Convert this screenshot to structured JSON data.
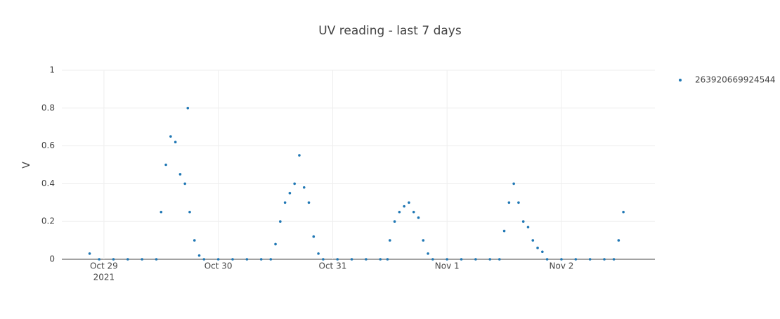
{
  "chart_data": {
    "type": "scatter",
    "title": "UV reading - last 7 days",
    "y_label": "V",
    "x": [
      "2021-10-28 21:00",
      "2021-10-28 23:00",
      "2021-10-29 02:00",
      "2021-10-29 05:00",
      "2021-10-29 08:00",
      "2021-10-29 11:00",
      "2021-10-29 12:00",
      "2021-10-29 13:00",
      "2021-10-29 14:00",
      "2021-10-29 15:00",
      "2021-10-29 16:00",
      "2021-10-29 17:00",
      "2021-10-29 17:36",
      "2021-10-29 18:00",
      "2021-10-29 19:00",
      "2021-10-29 20:00",
      "2021-10-29 21:00",
      "2021-10-30 00:00",
      "2021-10-30 03:00",
      "2021-10-30 06:00",
      "2021-10-30 09:00",
      "2021-10-30 11:00",
      "2021-10-30 12:00",
      "2021-10-30 13:00",
      "2021-10-30 14:00",
      "2021-10-30 15:00",
      "2021-10-30 16:00",
      "2021-10-30 17:00",
      "2021-10-30 18:00",
      "2021-10-30 19:00",
      "2021-10-30 20:00",
      "2021-10-30 21:00",
      "2021-10-30 22:00",
      "2021-10-31 01:00",
      "2021-10-31 04:00",
      "2021-10-31 07:00",
      "2021-10-31 10:00",
      "2021-10-31 11:30",
      "2021-10-31 12:00",
      "2021-10-31 13:00",
      "2021-10-31 14:00",
      "2021-10-31 15:00",
      "2021-10-31 16:00",
      "2021-10-31 17:00",
      "2021-10-31 18:00",
      "2021-10-31 19:00",
      "2021-10-31 20:00",
      "2021-10-31 21:00",
      "2021-11-01 00:00",
      "2021-11-01 03:00",
      "2021-11-01 06:00",
      "2021-11-01 09:00",
      "2021-11-01 11:00",
      "2021-11-01 12:00",
      "2021-11-01 13:00",
      "2021-11-01 14:00",
      "2021-11-01 15:00",
      "2021-11-01 16:00",
      "2021-11-01 17:00",
      "2021-11-01 18:00",
      "2021-11-01 19:00",
      "2021-11-01 20:00",
      "2021-11-01 21:00",
      "2021-11-02 00:00",
      "2021-11-02 03:00",
      "2021-11-02 06:00",
      "2021-11-02 09:00",
      "2021-11-02 11:00",
      "2021-11-02 12:00",
      "2021-11-02 13:00"
    ],
    "series": [
      {
        "name": "263920669924544",
        "color": "#1f77b4",
        "values": [
          0.03,
          0,
          0,
          0,
          0,
          0,
          0.25,
          0.5,
          0.65,
          0.62,
          0.45,
          0.4,
          0.8,
          0.25,
          0.1,
          0.02,
          0,
          0,
          0,
          0,
          0,
          0,
          0.08,
          0.2,
          0.3,
          0.35,
          0.4,
          0.55,
          0.38,
          0.3,
          0.12,
          0.03,
          0,
          0,
          0,
          0,
          0,
          0,
          0.1,
          0.2,
          0.25,
          0.28,
          0.3,
          0.25,
          0.22,
          0.1,
          0.03,
          0,
          0,
          0,
          0,
          0,
          0,
          0.15,
          0.3,
          0.4,
          0.3,
          0.2,
          0.17,
          0.1,
          0.06,
          0.04,
          0,
          0,
          0,
          0,
          0,
          0,
          0.1,
          0.25
        ]
      }
    ],
    "xlim": [
      "2021-10-28 15:10",
      "2021-11-02 19:37"
    ],
    "xticks": [
      {
        "value": "2021-10-29 00:00",
        "label": "Oct 29"
      },
      {
        "value": "2021-10-30 00:00",
        "label": "Oct 30"
      },
      {
        "value": "2021-10-31 00:00",
        "label": "Oct 31"
      },
      {
        "value": "2021-11-01 00:00",
        "label": "Nov 1"
      },
      {
        "value": "2021-11-02 00:00",
        "label": "Nov 2"
      }
    ],
    "x_year_label": "2021",
    "ylim": [
      0,
      1
    ],
    "yticks": [
      0,
      0.2,
      0.4,
      0.6,
      0.8,
      1
    ],
    "grid": true,
    "legend": "right"
  }
}
